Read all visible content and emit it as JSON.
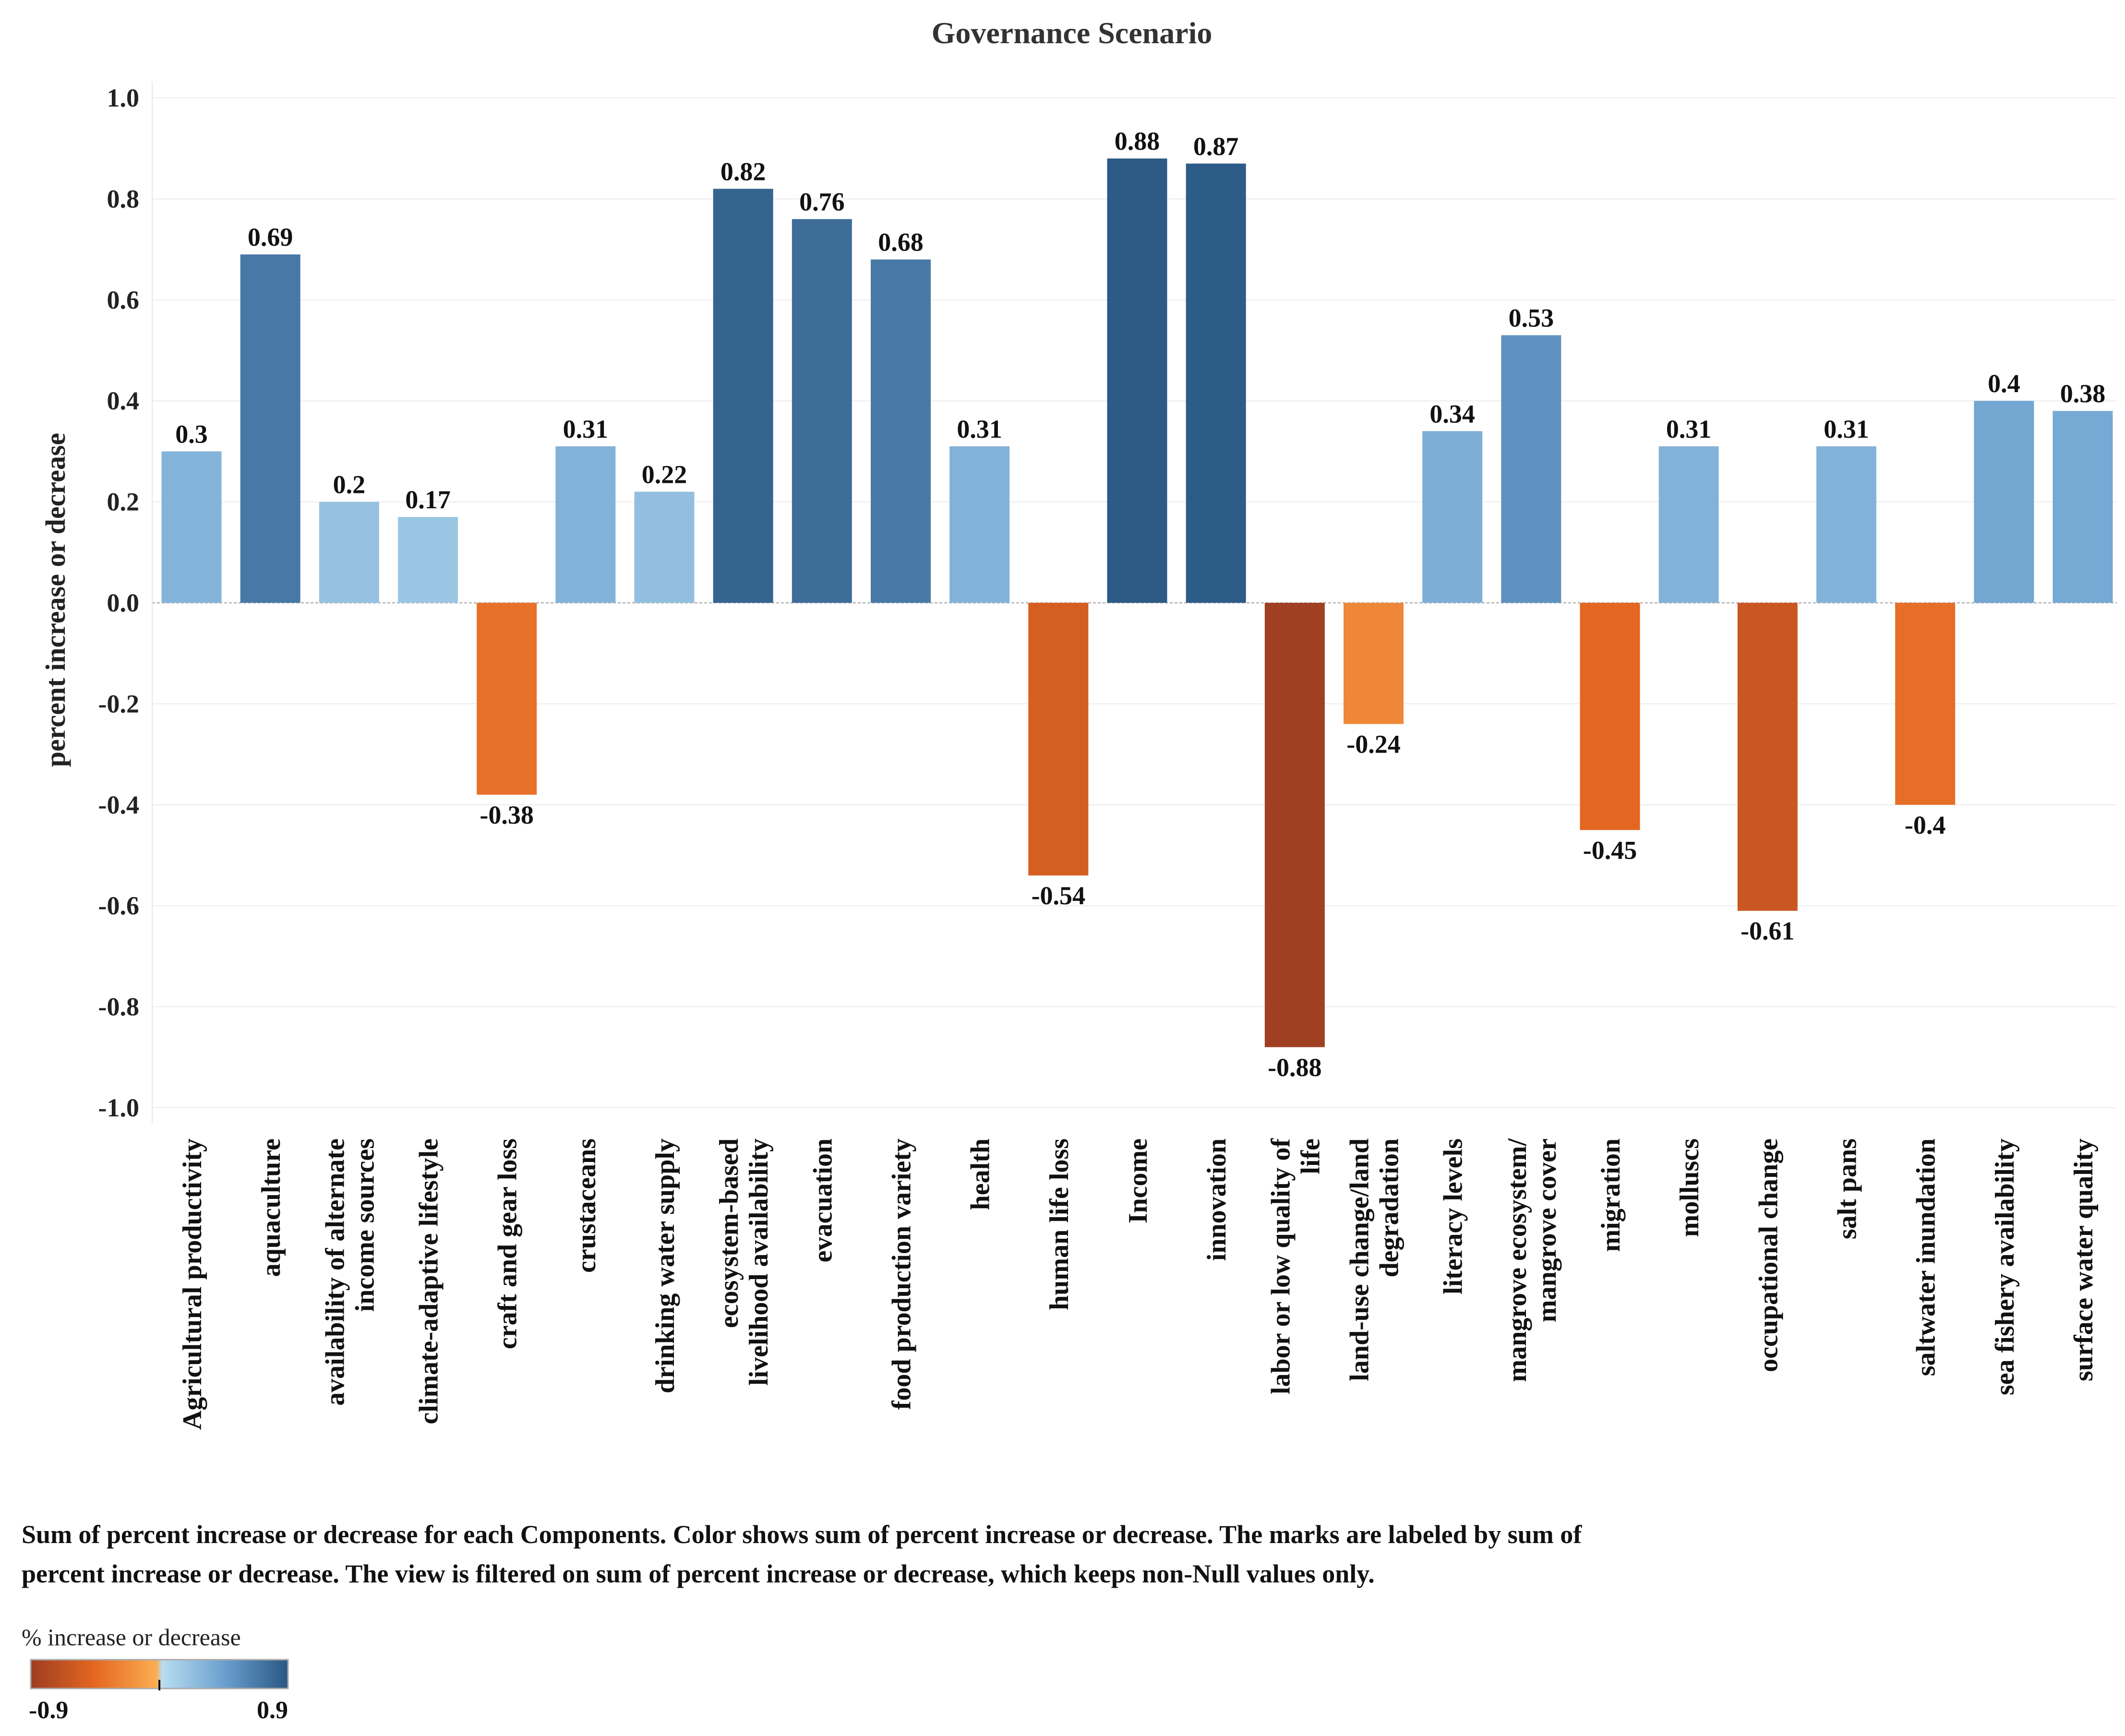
{
  "chart_data": {
    "type": "bar",
    "title": "Governance Scenario",
    "xlabel": "",
    "ylabel": "percent increase or decrease",
    "ylim": [
      -1.0,
      1.0
    ],
    "yticks": [
      "1.0",
      "0.8",
      "0.6",
      "0.4",
      "0.2",
      "0.0",
      "-0.2",
      "-0.4",
      "-0.6",
      "-0.8",
      "-1.0"
    ],
    "grid": true,
    "categories": [
      [
        "Agricultural productivity"
      ],
      [
        "aquaculture"
      ],
      [
        "availability of alternate",
        "income sources"
      ],
      [
        "climate-adaptive lifestyle"
      ],
      [
        "craft and gear loss"
      ],
      [
        "crustaceans"
      ],
      [
        "drinking water supply"
      ],
      [
        "ecosystem-based",
        "livelihood availability"
      ],
      [
        "evacuation"
      ],
      [
        "food production variety"
      ],
      [
        "health"
      ],
      [
        "human life loss"
      ],
      [
        "Income"
      ],
      [
        "innovation"
      ],
      [
        "labor or low quality of",
        "life"
      ],
      [
        "land-use change/land",
        "degradation"
      ],
      [
        "literacy levels"
      ],
      [
        "mangrove ecosystem/",
        "mangrove cover"
      ],
      [
        "migration"
      ],
      [
        "molluscs"
      ],
      [
        "occupational change"
      ],
      [
        "salt pans"
      ],
      [
        "saltwater inundation"
      ],
      [
        "sea fishery availability"
      ],
      [
        "surface water quality"
      ]
    ],
    "values": [
      0.3,
      0.69,
      0.2,
      0.17,
      -0.38,
      0.31,
      0.22,
      0.82,
      0.76,
      0.68,
      0.31,
      -0.54,
      0.88,
      0.87,
      -0.88,
      -0.24,
      0.34,
      0.53,
      -0.45,
      0.31,
      -0.61,
      0.31,
      -0.4,
      0.4,
      0.38
    ],
    "value_labels": [
      "0.3",
      "0.69",
      "0.2",
      "0.17",
      "-0.38",
      "0.31",
      "0.22",
      "0.82",
      "0.76",
      "0.68",
      "0.31",
      "-0.54",
      "0.88",
      "0.87",
      "-0.88",
      "-0.24",
      "0.34",
      "0.53",
      "-0.45",
      "0.31",
      "-0.61",
      "0.31",
      "-0.4",
      "0.4",
      "0.38"
    ],
    "caption": [
      "Sum of percent increase or decrease for each Components.  Color shows sum of percent increase or decrease.  The marks are labeled by sum of",
      "percent increase or decrease. The view is filtered on sum of percent increase or decrease, which keeps non-Null values only."
    ],
    "color_legend": {
      "title": "% increase or decrease",
      "min_label": "-0.9",
      "max_label": "0.9",
      "range": [
        -0.9,
        0.9
      ],
      "colors": [
        "#9e3d22",
        "#e36621",
        "#fcad52",
        "#b9ddf1",
        "#6a9fcd",
        "#2a5783"
      ]
    }
  }
}
